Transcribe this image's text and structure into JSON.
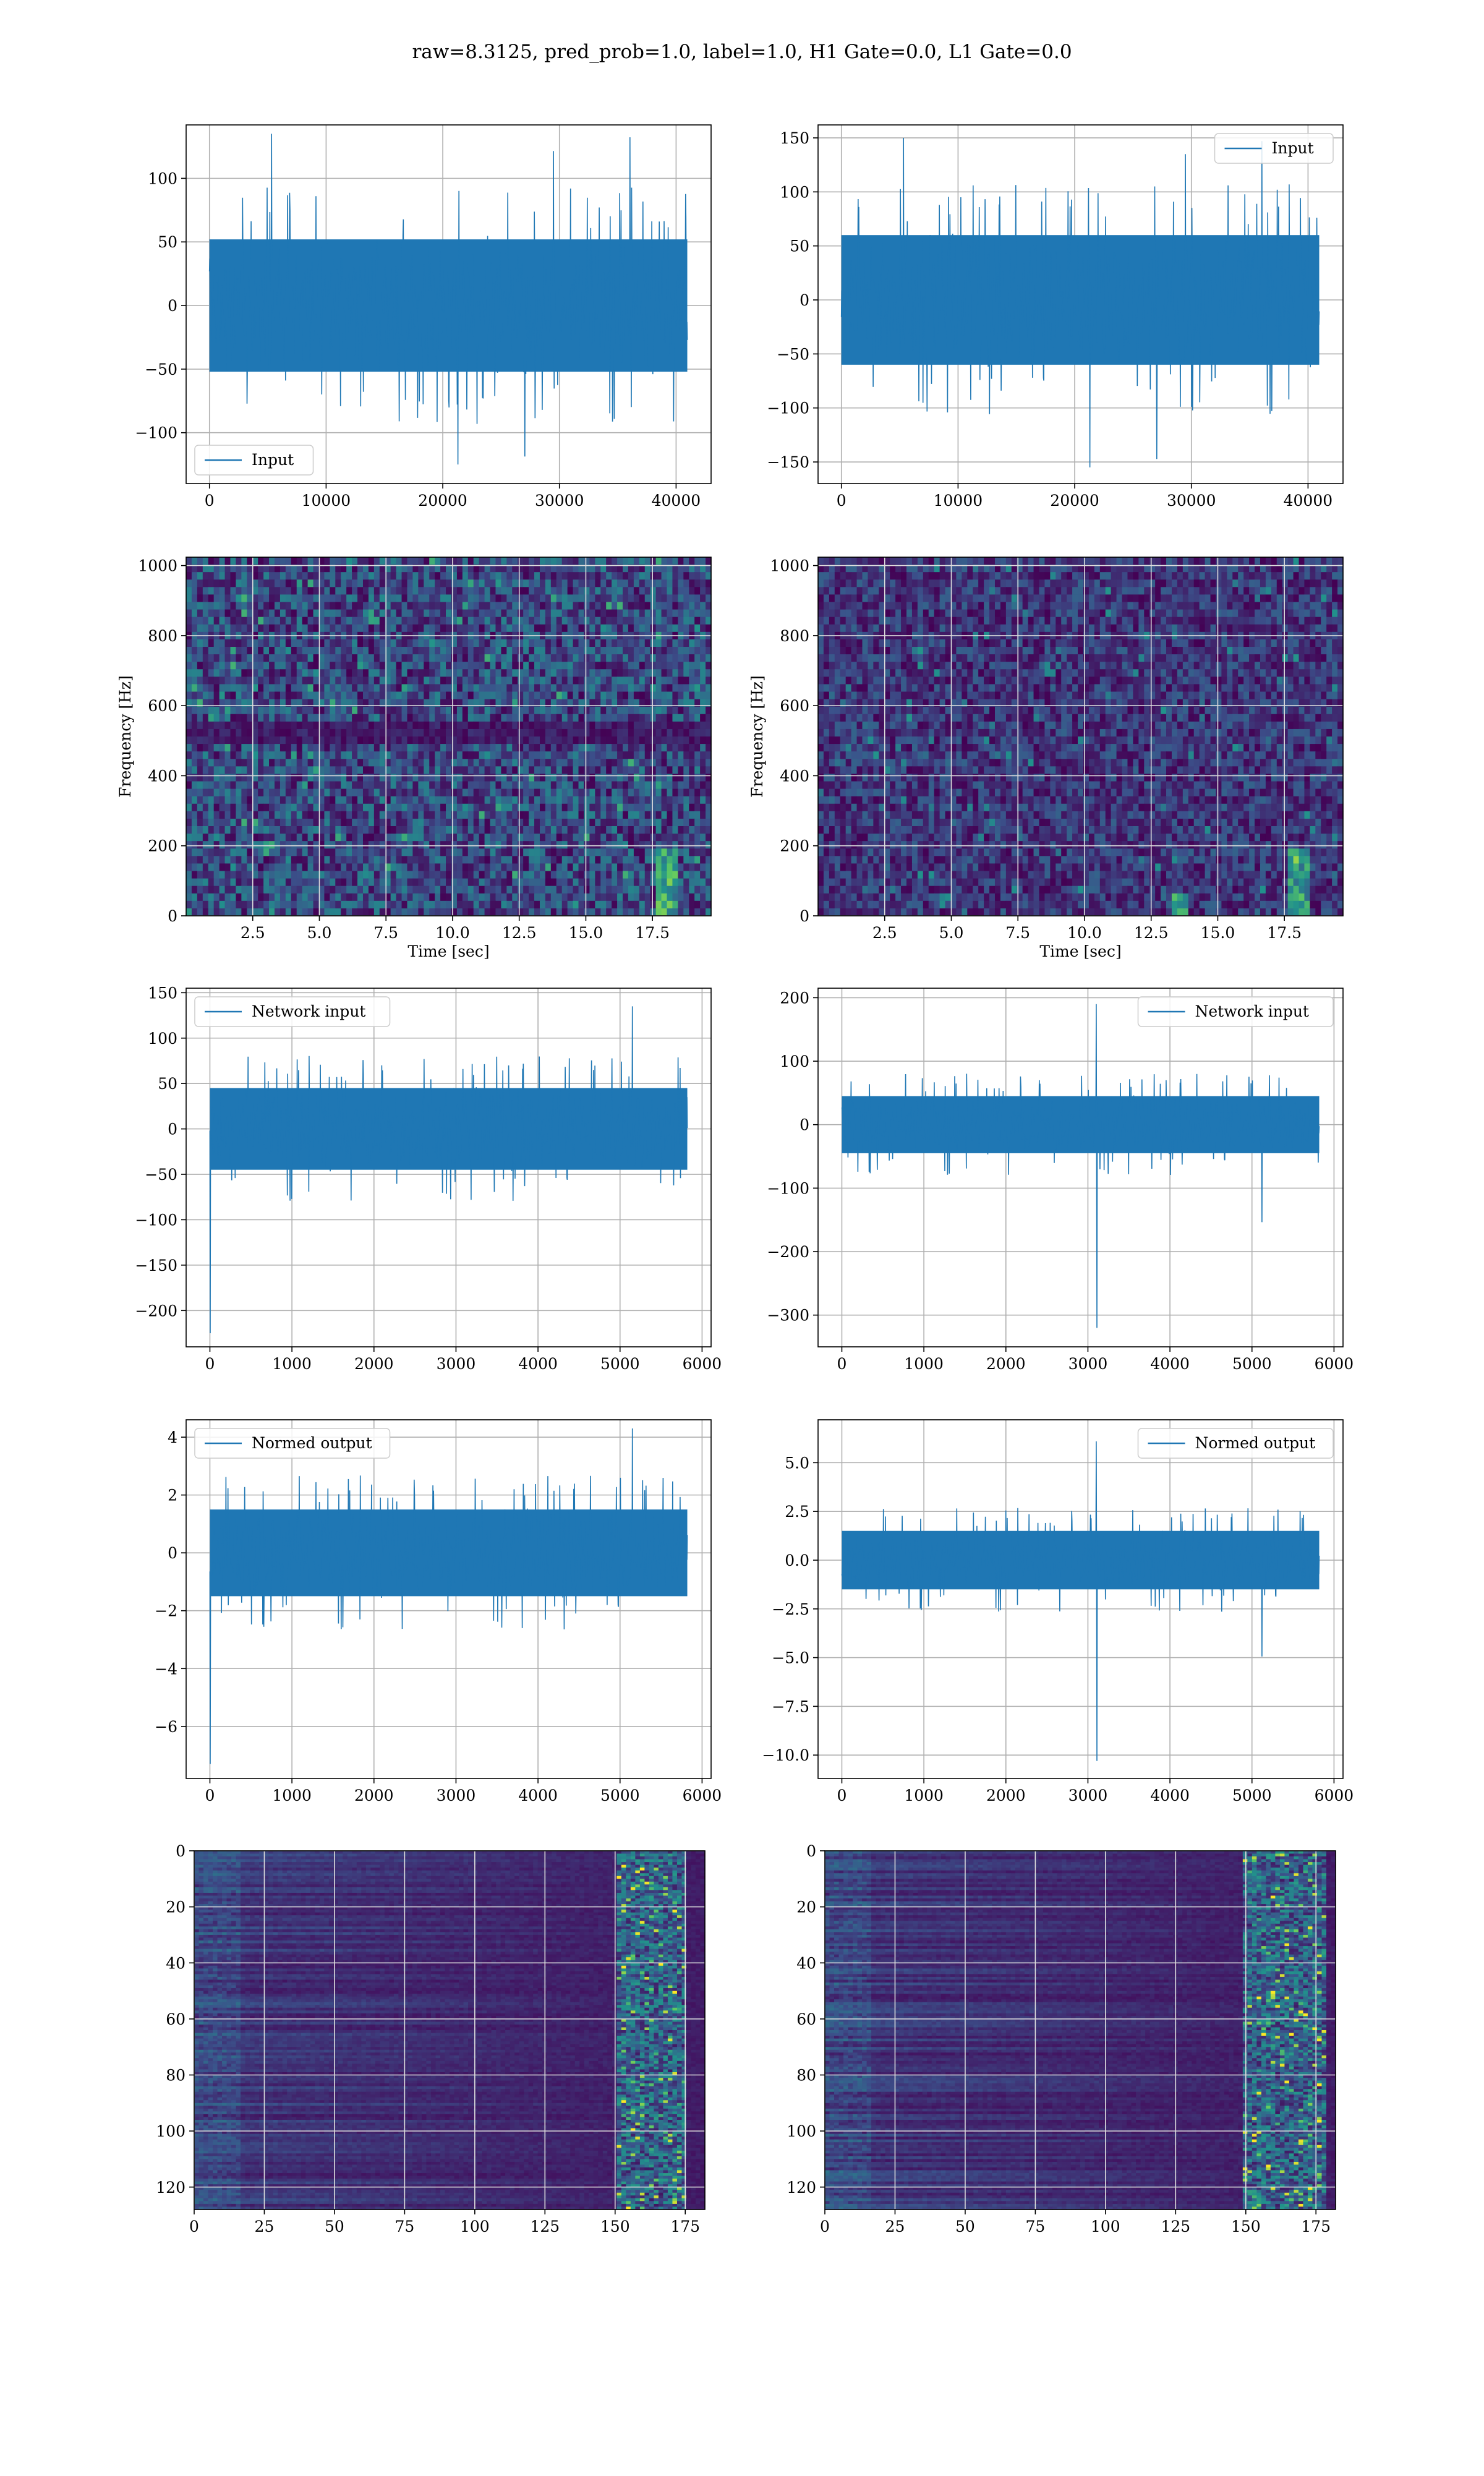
{
  "figure": {
    "title": "raw=8.3125, pred_prob=1.0, label=1.0, H1 Gate=0.0, L1 Gate=0.0"
  },
  "colors": {
    "line": "#1f77b4",
    "grid": "#b0b0b0",
    "viridis_dark": "#440154",
    "viridis_mid": "#31688e",
    "viridis_green": "#35b779",
    "viridis_yellow": "#fde725"
  },
  "chart_data": [
    {
      "id": "h1-input",
      "type": "line",
      "series": [
        {
          "name": "Input",
          "values": "dense noise ±50, peaks near ±130"
        }
      ],
      "x_range": [
        0,
        40960
      ],
      "xlim": [
        -2000,
        43000
      ],
      "ylim": [
        -140,
        142
      ],
      "xticks": [
        0,
        10000,
        20000,
        30000,
        40000
      ],
      "xtick_labels": [
        "0",
        "10000",
        "20000",
        "30000",
        "40000"
      ],
      "yticks": [
        -100,
        -50,
        0,
        50,
        100
      ],
      "ytick_labels": [
        "−100",
        "−50",
        "0",
        "50",
        "100"
      ],
      "amplitude": {
        "core": 52,
        "peak_high": 135,
        "peak_low": -125
      },
      "legend": "lower-left",
      "grid": true
    },
    {
      "id": "l1-input",
      "type": "line",
      "series": [
        {
          "name": "Input",
          "values": "dense noise ±60, peaks near +150 / -155"
        }
      ],
      "x_range": [
        0,
        40960
      ],
      "xlim": [
        -2000,
        43000
      ],
      "ylim": [
        -170,
        162
      ],
      "xticks": [
        0,
        10000,
        20000,
        30000,
        40000
      ],
      "xtick_labels": [
        "0",
        "10000",
        "20000",
        "30000",
        "40000"
      ],
      "yticks": [
        -150,
        -100,
        -50,
        0,
        50,
        100,
        150
      ],
      "ytick_labels": [
        "−150",
        "−100",
        "−50",
        "0",
        "50",
        "100",
        "150"
      ],
      "amplitude": {
        "core": 60,
        "peak_high": 150,
        "peak_low": -155
      },
      "legend": "top-right",
      "grid": true
    },
    {
      "id": "h1-spectrogram",
      "type": "heatmap",
      "xlabel": "Time [sec]",
      "ylabel": "Frequency [Hz]",
      "xlim": [
        0,
        19.7
      ],
      "ylim": [
        0,
        1024
      ],
      "xticks": [
        2.5,
        5.0,
        7.5,
        10.0,
        12.5,
        15.0,
        17.5
      ],
      "xtick_labels": [
        "2.5",
        "5.0",
        "7.5",
        "10.0",
        "12.5",
        "15.0",
        "17.5"
      ],
      "yticks": [
        0,
        200,
        400,
        600,
        800,
        1000
      ],
      "ytick_labels": [
        "0",
        "200",
        "400",
        "600",
        "800",
        "1000"
      ],
      "colormap": "viridis",
      "grid": true
    },
    {
      "id": "l1-spectrogram",
      "type": "heatmap",
      "xlabel": "Time [sec]",
      "ylabel": "Frequency [Hz]",
      "xlim": [
        0,
        19.7
      ],
      "ylim": [
        0,
        1024
      ],
      "xticks": [
        2.5,
        5.0,
        7.5,
        10.0,
        12.5,
        15.0,
        17.5
      ],
      "xtick_labels": [
        "2.5",
        "5.0",
        "7.5",
        "10.0",
        "12.5",
        "15.0",
        "17.5"
      ],
      "yticks": [
        0,
        200,
        400,
        600,
        800,
        1000
      ],
      "ytick_labels": [
        "0",
        "200",
        "400",
        "600",
        "800",
        "1000"
      ],
      "colormap": "viridis",
      "grid": true
    },
    {
      "id": "h1-network-input",
      "type": "line",
      "series": [
        {
          "name": "Network input",
          "values": "noise ±45, dip to -225 at start"
        }
      ],
      "x_range": [
        0,
        5820
      ],
      "xlim": [
        -290,
        6110
      ],
      "ylim": [
        -240,
        155
      ],
      "xticks": [
        0,
        1000,
        2000,
        3000,
        4000,
        5000,
        6000
      ],
      "xtick_labels": [
        "0",
        "1000",
        "2000",
        "3000",
        "4000",
        "5000",
        "6000"
      ],
      "yticks": [
        -200,
        -150,
        -100,
        -50,
        0,
        50,
        100,
        150
      ],
      "ytick_labels": [
        "−200",
        "−150",
        "−100",
        "−50",
        "0",
        "50",
        "100",
        "150"
      ],
      "amplitude": {
        "core": 45,
        "peak_high": 135,
        "peak_low": -225
      },
      "legend": "top-left",
      "grid": true
    },
    {
      "id": "l1-network-input",
      "type": "line",
      "series": [
        {
          "name": "Network input",
          "values": "noise ±45, spike +190 / -320 near 3100"
        }
      ],
      "x_range": [
        0,
        5820
      ],
      "xlim": [
        -290,
        6110
      ],
      "ylim": [
        -350,
        215
      ],
      "xticks": [
        0,
        1000,
        2000,
        3000,
        4000,
        5000,
        6000
      ],
      "xtick_labels": [
        "0",
        "1000",
        "2000",
        "3000",
        "4000",
        "5000",
        "6000"
      ],
      "yticks": [
        -300,
        -200,
        -100,
        0,
        100,
        200
      ],
      "ytick_labels": [
        "−300",
        "−200",
        "−100",
        "0",
        "100",
        "200"
      ],
      "amplitude": {
        "core": 45,
        "peak_high": 190,
        "peak_low": -320
      },
      "legend": "top-right",
      "grid": true
    },
    {
      "id": "h1-normed-output",
      "type": "line",
      "series": [
        {
          "name": "Normed output",
          "values": "noise ±1.5, dip to -7.3 at start"
        }
      ],
      "x_range": [
        0,
        5820
      ],
      "xlim": [
        -290,
        6110
      ],
      "ylim": [
        -7.8,
        4.6
      ],
      "xticks": [
        0,
        1000,
        2000,
        3000,
        4000,
        5000,
        6000
      ],
      "xtick_labels": [
        "0",
        "1000",
        "2000",
        "3000",
        "4000",
        "5000",
        "6000"
      ],
      "yticks": [
        -6,
        -4,
        -2,
        0,
        2,
        4
      ],
      "ytick_labels": [
        "−6",
        "−4",
        "−2",
        "0",
        "2",
        "4"
      ],
      "amplitude": {
        "core": 1.5,
        "peak_high": 4.3,
        "peak_low": -7.3
      },
      "legend": "top-left",
      "grid": true
    },
    {
      "id": "l1-normed-output",
      "type": "line",
      "series": [
        {
          "name": "Normed output",
          "values": "noise ±1.5, spike +6 / -10.3 near 3100"
        }
      ],
      "x_range": [
        0,
        5820
      ],
      "xlim": [
        -290,
        6110
      ],
      "ylim": [
        -11.2,
        7.2
      ],
      "xticks": [
        0,
        1000,
        2000,
        3000,
        4000,
        5000,
        6000
      ],
      "xtick_labels": [
        "0",
        "1000",
        "2000",
        "3000",
        "4000",
        "5000",
        "6000"
      ],
      "yticks": [
        -10.0,
        -7.5,
        -5.0,
        -2.5,
        0.0,
        2.5,
        5.0
      ],
      "ytick_labels": [
        "−10.0",
        "−7.5",
        "−5.0",
        "−2.5",
        "0.0",
        "2.5",
        "5.0"
      ],
      "amplitude": {
        "core": 1.5,
        "peak_high": 6.1,
        "peak_low": -10.3
      },
      "legend": "top-right",
      "grid": true
    },
    {
      "id": "h1-feature-map",
      "type": "heatmap",
      "xlim": [
        0,
        182
      ],
      "ylim": [
        128,
        0
      ],
      "xticks": [
        0,
        25,
        50,
        75,
        100,
        125,
        150,
        175
      ],
      "xtick_labels": [
        "0",
        "25",
        "50",
        "75",
        "100",
        "125",
        "150",
        "175"
      ],
      "yticks": [
        0,
        20,
        40,
        60,
        80,
        100,
        120
      ],
      "ytick_labels": [
        "0",
        "20",
        "40",
        "60",
        "80",
        "100",
        "120"
      ],
      "colormap": "viridis",
      "hot_column_range": [
        150,
        175
      ],
      "grid": true
    },
    {
      "id": "l1-feature-map",
      "type": "heatmap",
      "xlim": [
        0,
        182
      ],
      "ylim": [
        128,
        0
      ],
      "xticks": [
        0,
        25,
        50,
        75,
        100,
        125,
        150,
        175
      ],
      "xtick_labels": [
        "0",
        "25",
        "50",
        "75",
        "100",
        "125",
        "150",
        "175"
      ],
      "yticks": [
        0,
        20,
        40,
        60,
        80,
        100,
        120
      ],
      "ytick_labels": [
        "0",
        "20",
        "40",
        "60",
        "80",
        "100",
        "120"
      ],
      "colormap": "viridis",
      "hot_column_range": [
        148,
        178
      ],
      "grid": true
    }
  ]
}
